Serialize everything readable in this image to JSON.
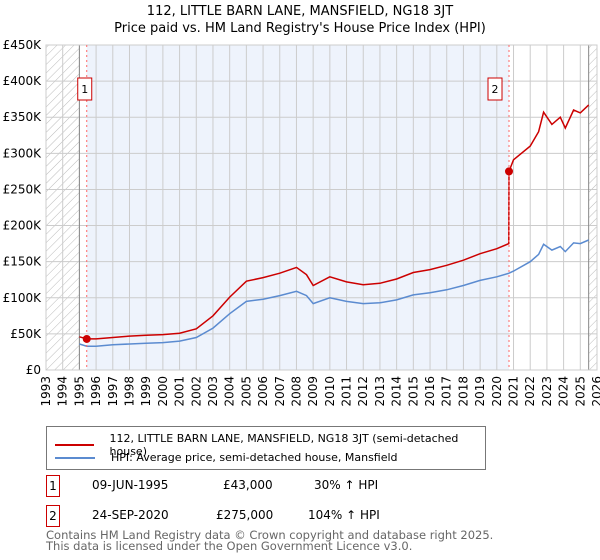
{
  "chart_data": {
    "type": "line",
    "title": "112, LITTLE BARN LANE, MANSFIELD, NG18 3JT",
    "subtitle": "Price paid vs. HM Land Registry's House Price Index (HPI)",
    "ylim": [
      0,
      450000
    ],
    "xlim": [
      1993,
      2026
    ],
    "y_ticks": [
      {
        "v": 0,
        "label": "£0"
      },
      {
        "v": 50000,
        "label": "£50K"
      },
      {
        "v": 100000,
        "label": "£100K"
      },
      {
        "v": 150000,
        "label": "£150K"
      },
      {
        "v": 200000,
        "label": "£200K"
      },
      {
        "v": 250000,
        "label": "£250K"
      },
      {
        "v": 300000,
        "label": "£300K"
      },
      {
        "v": 350000,
        "label": "£350K"
      },
      {
        "v": 400000,
        "label": "£400K"
      },
      {
        "v": 450000,
        "label": "£450K"
      }
    ],
    "x_ticks": [
      "1993",
      "1994",
      "1995",
      "1996",
      "1997",
      "1998",
      "1999",
      "2000",
      "2001",
      "2002",
      "2003",
      "2004",
      "2005",
      "2006",
      "2007",
      "2008",
      "2009",
      "2010",
      "2011",
      "2012",
      "2013",
      "2014",
      "2015",
      "2016",
      "2017",
      "2018",
      "2019",
      "2020",
      "2021",
      "2022",
      "2023",
      "2024",
      "2025",
      "2026"
    ],
    "grid": true,
    "legend_position": "below",
    "series": [
      {
        "name": "112, LITTLE BARN LANE, MANSFIELD, NG18 3JT (semi-detached house)",
        "color": "#cc0000",
        "x": [
          1995.0,
          1995.44,
          1996,
          1997,
          1998,
          1999,
          2000,
          2001,
          2002,
          2003,
          2004,
          2005,
          2006,
          2007,
          2008,
          2008.6,
          2009,
          2010,
          2011,
          2012,
          2013,
          2014,
          2015,
          2016,
          2017,
          2018,
          2019,
          2020,
          2020.72,
          2020.73,
          2021,
          2022,
          2022.5,
          2022.8,
          2023.3,
          2023.8,
          2024.1,
          2024.6,
          2025,
          2025.5
        ],
        "y": [
          46000,
          43000,
          43000,
          45000,
          47000,
          48000,
          49000,
          51000,
          57000,
          75000,
          101000,
          123000,
          128000,
          134000,
          142000,
          132000,
          117000,
          129000,
          122000,
          118000,
          120000,
          126000,
          135000,
          139000,
          145000,
          152000,
          161000,
          168000,
          175000,
          275000,
          291000,
          310000,
          330000,
          357000,
          340000,
          350000,
          335000,
          360000,
          356000,
          367000
        ]
      },
      {
        "name": "HPI: Average price, semi-detached house, Mansfield",
        "color": "#5b8bd0",
        "x": [
          1995.0,
          1995.44,
          1996,
          1997,
          1998,
          1999,
          2000,
          2001,
          2002,
          2003,
          2004,
          2005,
          2006,
          2007,
          2008,
          2008.6,
          2009,
          2010,
          2011,
          2012,
          2013,
          2014,
          2015,
          2016,
          2017,
          2018,
          2019,
          2020,
          2020.73,
          2021,
          2022,
          2022.5,
          2022.8,
          2023.3,
          2023.8,
          2024.1,
          2024.6,
          2025,
          2025.5
        ],
        "y": [
          36000,
          33000,
          33000,
          35000,
          36000,
          37000,
          38000,
          40000,
          45000,
          58000,
          78000,
          95000,
          98000,
          103000,
          109000,
          103000,
          92000,
          100000,
          95000,
          92000,
          93000,
          97000,
          104000,
          107000,
          111000,
          117000,
          124000,
          129000,
          134000,
          137000,
          150000,
          160000,
          174000,
          166000,
          171000,
          164000,
          176000,
          175000,
          180000
        ]
      }
    ],
    "annotations": [
      {
        "label": "1",
        "x": 1995.44,
        "y": 43000
      },
      {
        "label": "2",
        "x": 2020.73,
        "y": 275000
      }
    ],
    "shaded_span": [
      1995.44,
      2020.73
    ],
    "hatched": [
      [
        1993,
        1995
      ],
      [
        2025.5,
        2026
      ]
    ]
  },
  "sales": [
    {
      "num": "1",
      "date": "09-JUN-1995",
      "price": "£43,000",
      "hpi": "30% ↑ HPI"
    },
    {
      "num": "2",
      "date": "24-SEP-2020",
      "price": "£275,000",
      "hpi": "104% ↑ HPI"
    }
  ],
  "footer": {
    "line1": "Contains HM Land Registry data © Crown copyright and database right 2025.",
    "line2": "This data is licensed under the Open Government Licence v3.0."
  }
}
